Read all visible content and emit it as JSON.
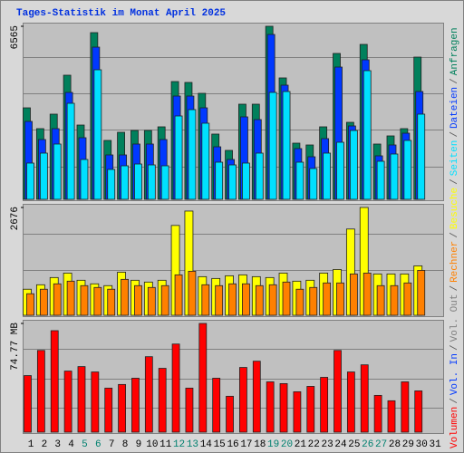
{
  "chart_data": {
    "type": "bar",
    "title": "Tages-Statistik im Monat April 2025",
    "legend_separator": "/",
    "categories": [
      "1",
      "2",
      "3",
      "4",
      "5",
      "6",
      "7",
      "8",
      "9",
      "10",
      "11",
      "12",
      "13",
      "14",
      "15",
      "16",
      "17",
      "18",
      "19",
      "20",
      "21",
      "22",
      "23",
      "24",
      "25",
      "26",
      "27",
      "28",
      "29",
      "30",
      "31"
    ],
    "category_colors": [
      "#000000",
      "#000000",
      "#000000",
      "#000000",
      "#00806f",
      "#00806f",
      "#000000",
      "#000000",
      "#000000",
      "#000000",
      "#000000",
      "#00806f",
      "#00806f",
      "#000000",
      "#000000",
      "#000000",
      "#000000",
      "#000000",
      "#00806f",
      "#00806f",
      "#000000",
      "#000000",
      "#000000",
      "#000000",
      "#000000",
      "#00806f",
      "#00806f",
      "#000000",
      "#000000",
      "#000000",
      "#000000"
    ],
    "panels": [
      {
        "ylim": [
          0,
          6565
        ],
        "yticks": [
          6565
        ],
        "series": [
          {
            "name": "Anfragen",
            "color": "#00805c",
            "values": [
              3471,
              2681,
              3231,
              4709,
              2818,
              6324,
              2234,
              2543,
              2612,
              2612,
              2750,
              4468,
              4434,
              4021,
              2475,
              1856,
              3609,
              3609,
              6565,
              4606,
              2131,
              2062,
              2750,
              5534,
              2921,
              5877,
              2097,
              2406,
              2681,
              5396,
              null
            ]
          },
          {
            "name": "Dateien",
            "color": "#0038ff",
            "values": [
              2956,
              2268,
              2681,
              4056,
              2337,
              5774,
              1684,
              1684,
              2097,
              2097,
              2268,
              3918,
              3918,
              3471,
              1993,
              1512,
              3128,
              3025,
              6255,
              4331,
              1925,
              1615,
              2303,
              5018,
              2784,
              5293,
              1650,
              2062,
              2509,
              4090,
              null
            ]
          },
          {
            "name": "Seiten",
            "color": "#00e0ff",
            "values": [
              1375,
              1753,
              2097,
              3643,
              1512,
              4915,
              1134,
              1272,
              1340,
              1306,
              1272,
              3162,
              3403,
              2887,
              1409,
              1306,
              1375,
              1753,
              4056,
              4090,
              1409,
              1169,
              1753,
              2165,
              2612,
              4881,
              1444,
              1719,
              2234,
              3231,
              null
            ]
          }
        ]
      },
      {
        "ylim": [
          0,
          2676
        ],
        "yticks": [
          2676
        ],
        "series": [
          {
            "name": "Besuche",
            "color": "#ffff00",
            "values": [
              647,
              758,
              937,
              1048,
              870,
              781,
              736,
              1070,
              870,
              825,
              870,
              2230,
              2587,
              959,
              914,
              981,
              1004,
              959,
              937,
              1048,
              847,
              870,
              1048,
              1137,
              2141,
              2676,
              1026,
              1026,
              1026,
              1227,
              null
            ]
          },
          {
            "name": "Rechner",
            "color": "#ff8000",
            "values": [
              535,
              647,
              781,
              847,
              736,
              691,
              647,
              892,
              736,
              691,
              736,
              1004,
              1093,
              758,
              736,
              781,
              781,
              736,
              758,
              825,
              647,
              691,
              803,
              803,
              1026,
              1048,
              736,
              736,
              803,
              1115,
              null
            ]
          }
        ]
      },
      {
        "ylim": [
          0,
          74.77
        ],
        "yticks": [
          {
            "value": 74.77,
            "label": "74.77 MB"
          }
        ],
        "series": [
          {
            "name": "Vol. Out",
            "color": "#808080",
            "values": [
              null,
              null,
              null,
              null,
              null,
              null,
              null,
              null,
              null,
              null,
              null,
              null,
              null,
              null,
              null,
              null,
              null,
              null,
              null,
              null,
              null,
              null,
              null,
              null,
              null,
              null,
              null,
              null,
              null,
              null,
              null
            ]
          },
          {
            "name": "Vol. In",
            "color": "#0038ff",
            "values": [
              null,
              null,
              null,
              null,
              null,
              null,
              null,
              null,
              null,
              null,
              null,
              null,
              null,
              null,
              null,
              null,
              null,
              null,
              null,
              null,
              null,
              null,
              null,
              null,
              null,
              null,
              null,
              null,
              null,
              null,
              null
            ]
          },
          {
            "name": "Volumen",
            "color": "#ff0000",
            "values": [
              38.9,
              56.2,
              69.8,
              42.0,
              45.1,
              41.4,
              30.3,
              32.8,
              37.1,
              51.9,
              43.9,
              60.6,
              30.3,
              74.77,
              37.1,
              24.7,
              44.5,
              48.8,
              34.6,
              33.4,
              27.8,
              31.5,
              37.7,
              56.2,
              41.4,
              46.3,
              25.3,
              21.6,
              34.6,
              28.4,
              null
            ]
          }
        ]
      }
    ]
  }
}
